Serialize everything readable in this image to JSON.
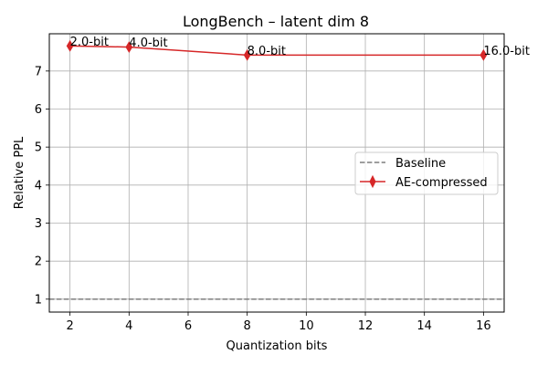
{
  "chart_data": {
    "type": "line",
    "title": "LongBench – latent dim 8",
    "xlabel": "Quantization bits",
    "ylabel": "Relative PPL",
    "xlim": [
      1.3,
      16.7
    ],
    "ylim": [
      0.66,
      7.98
    ],
    "xticks": [
      2,
      4,
      6,
      8,
      10,
      12,
      14,
      16
    ],
    "yticks": [
      1,
      2,
      3,
      4,
      5,
      6,
      7
    ],
    "grid": true,
    "legend_position": "center-right",
    "baseline": {
      "name": "Baseline",
      "y": 1.0,
      "style": "dashed",
      "color": "#7f7f7f"
    },
    "series": [
      {
        "name": "AE-compressed",
        "color": "#d62728",
        "marker": "thin-diamond",
        "x": [
          2,
          4,
          8,
          16
        ],
        "y": [
          7.66,
          7.63,
          7.42,
          7.42
        ],
        "point_labels": [
          "2.0-bit",
          "4.0-bit",
          "8.0-bit",
          "16.0-bit"
        ]
      }
    ]
  }
}
